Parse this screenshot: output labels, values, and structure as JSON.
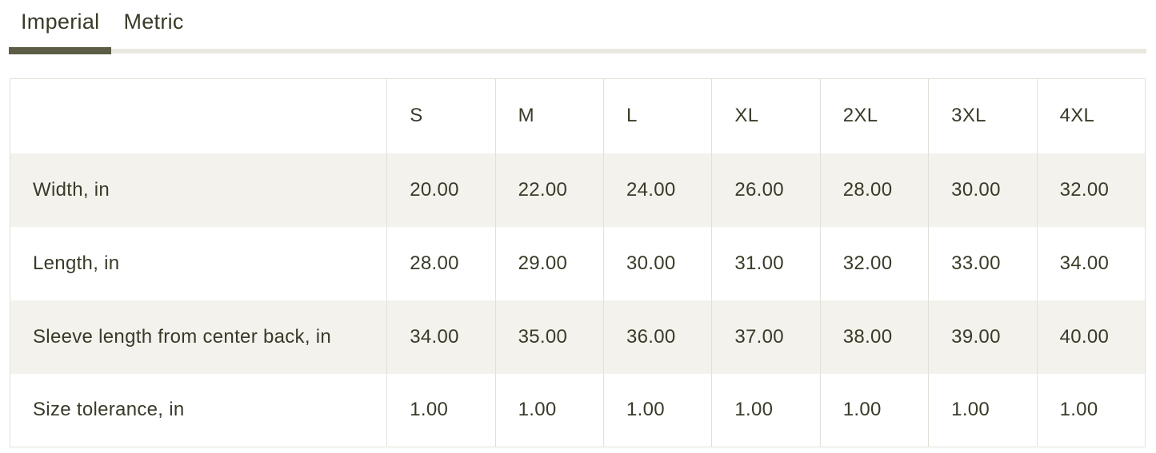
{
  "tabs": {
    "items": [
      {
        "id": "imperial",
        "label": "Imperial",
        "active": true
      },
      {
        "id": "metric",
        "label": "Metric",
        "active": false
      }
    ]
  },
  "size_chart": {
    "corner_header": "",
    "size_columns": [
      "S",
      "M",
      "L",
      "XL",
      "2XL",
      "3XL",
      "4XL"
    ],
    "rows": [
      {
        "label": "Width, in",
        "values": [
          "20.00",
          "22.00",
          "24.00",
          "26.00",
          "28.00",
          "30.00",
          "32.00"
        ]
      },
      {
        "label": "Length, in",
        "values": [
          "28.00",
          "29.00",
          "30.00",
          "31.00",
          "32.00",
          "33.00",
          "34.00"
        ]
      },
      {
        "label": "Sleeve length from center back, in",
        "values": [
          "34.00",
          "35.00",
          "36.00",
          "37.00",
          "38.00",
          "39.00",
          "40.00"
        ]
      },
      {
        "label": "Size tolerance, in",
        "values": [
          "1.00",
          "1.00",
          "1.00",
          "1.00",
          "1.00",
          "1.00",
          "1.00"
        ]
      }
    ]
  },
  "colors": {
    "text": "#3a3a29",
    "tab_active_underline": "#5d5c46",
    "tab_line": "#e9e8e0",
    "table_border": "#e2e1d9",
    "row_shaded_bg": "#f3f2ec",
    "row_white_bg": "#ffffff"
  }
}
